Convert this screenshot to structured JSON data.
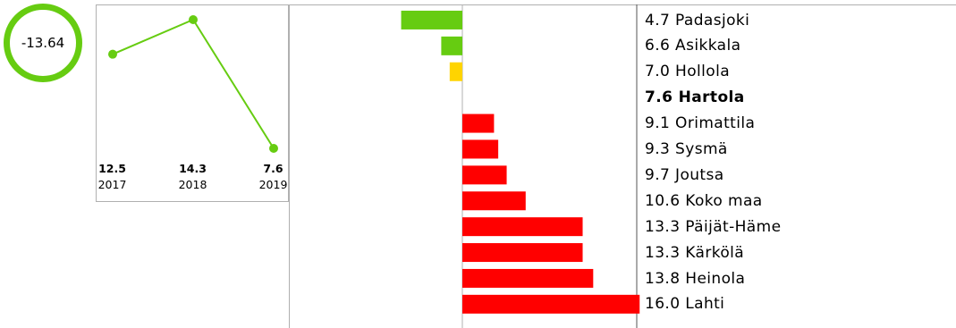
{
  "kpi": {
    "value": "-13.64",
    "ring_color": "#66cc11"
  },
  "chart_data": [
    {
      "type": "line",
      "x": [
        "2017",
        "2018",
        "2019"
      ],
      "series": [
        {
          "values": [
            12.5,
            14.3,
            7.6
          ]
        }
      ],
      "value_labels": [
        "12.5",
        "14.3",
        "7.6"
      ],
      "color": "#66cc11"
    },
    {
      "type": "bar",
      "orientation": "horizontal",
      "baseline": 7.6,
      "categories": [
        "Padasjoki",
        "Asikkala",
        "Hollola",
        "Hartola",
        "Orimattila",
        "Sysmä",
        "Joutsa",
        "Koko maa",
        "Päijät-Häme",
        "Kärkölä",
        "Heinola",
        "Lahti"
      ],
      "values": [
        4.7,
        6.6,
        7.0,
        7.6,
        9.1,
        9.3,
        9.7,
        10.6,
        13.3,
        13.3,
        13.8,
        16.0
      ],
      "labels": [
        "4.7 Padasjoki",
        "6.6 Asikkala",
        "7.0 Hollola",
        "7.6 Hartola",
        "9.1 Orimattila",
        "9.3 Sysmä",
        "9.7 Joutsa",
        "10.6 Koko maa",
        "13.3 Päijät-Häme",
        "13.3 Kärkölä",
        "13.8 Heinola",
        "16.0 Lahti"
      ],
      "highlight": "Hartola",
      "colors": [
        "#66cc11",
        "#66cc11",
        "#ffd400",
        "#000000",
        "#ff0000",
        "#ff0000",
        "#ff0000",
        "#ff0000",
        "#ff0000",
        "#ff0000",
        "#ff0000",
        "#ff0000"
      ]
    }
  ]
}
